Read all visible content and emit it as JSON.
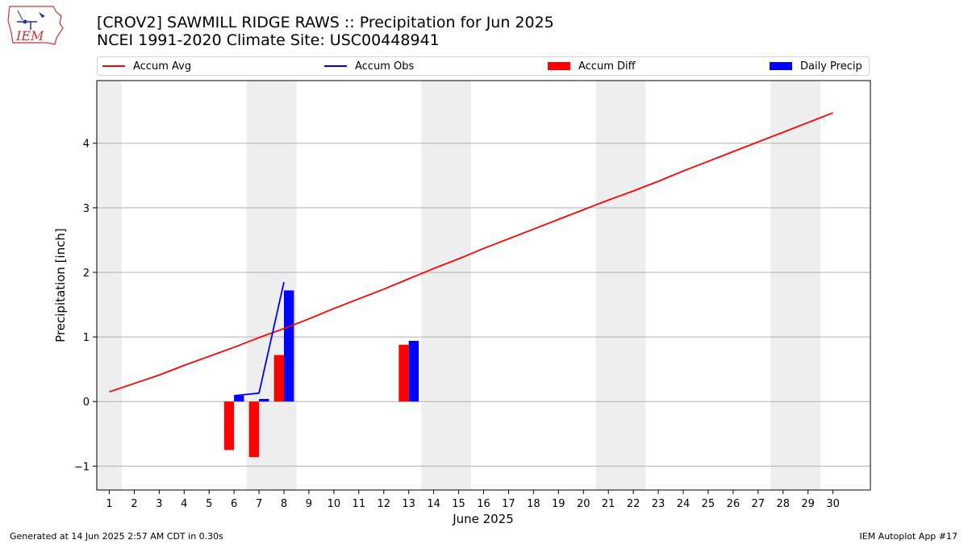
{
  "header": {
    "title_line1": "[CROV2] SAWMILL RIDGE RAWS :: Precipitation for Jun 2025",
    "title_line2": "NCEI 1991-2020 Climate Site: USC00448941"
  },
  "logo": {
    "text": "IEM"
  },
  "footer": {
    "generated": "Generated at 14 Jun 2025 2:57 AM CDT in 0.30s",
    "app": "IEM Autoplot App #17"
  },
  "colors": {
    "avg": "#ff0000",
    "obs": "#0000ff",
    "diff": "#ff0000",
    "daily": "#0000ff",
    "weekend": "#eeeeee",
    "grid": "#b0b0b0"
  },
  "chart_data": {
    "type": "bar",
    "title": "[CROV2] SAWMILL RIDGE RAWS :: Precipitation for Jun 2025",
    "subtitle": "NCEI 1991-2020 Climate Site: USC00448941",
    "xlabel": "June 2025",
    "ylabel": "Precipitation [inch]",
    "xlim": [
      0.5,
      31.5
    ],
    "ylim": [
      -1.37,
      4.97
    ],
    "yticks": [
      -1,
      0,
      1,
      2,
      3,
      4
    ],
    "ytick_labels": [
      "−1",
      "0",
      "1",
      "2",
      "3",
      "4"
    ],
    "x": [
      1,
      2,
      3,
      4,
      5,
      6,
      7,
      8,
      9,
      10,
      11,
      12,
      13,
      14,
      15,
      16,
      17,
      18,
      19,
      20,
      21,
      22,
      23,
      24,
      25,
      26,
      27,
      28,
      29,
      30
    ],
    "grid": "horizontal",
    "legend_position": "top",
    "weekend_shading": [
      [
        0.5,
        1.5
      ],
      [
        6.5,
        8.5
      ],
      [
        13.5,
        15.5
      ],
      [
        20.5,
        22.5
      ],
      [
        27.5,
        29.5
      ]
    ],
    "series": [
      {
        "name": "Accum Avg",
        "kind": "line",
        "x": [
          1,
          2,
          3,
          4,
          5,
          6,
          7,
          8,
          9,
          10,
          11,
          12,
          13,
          14,
          15,
          16,
          17,
          18,
          19,
          20,
          21,
          22,
          23,
          24,
          25,
          26,
          27,
          28,
          29,
          30
        ],
        "values": [
          0.15,
          0.28,
          0.41,
          0.56,
          0.7,
          0.84,
          0.99,
          1.13,
          1.28,
          1.44,
          1.59,
          1.74,
          1.9,
          2.06,
          2.21,
          2.37,
          2.52,
          2.67,
          2.82,
          2.97,
          3.12,
          3.26,
          3.41,
          3.57,
          3.72,
          3.87,
          4.02,
          4.17,
          4.32,
          4.47
        ]
      },
      {
        "name": "Accum Obs",
        "kind": "line",
        "x": [
          6,
          7,
          8
        ],
        "values": [
          0.09,
          0.13,
          1.85
        ]
      },
      {
        "name": "Accum Diff",
        "kind": "bar",
        "offset": -0.4,
        "x": [
          6,
          7,
          8,
          13
        ],
        "values": [
          -0.75,
          -0.86,
          0.72,
          0.88
        ]
      },
      {
        "name": "Daily Precip",
        "kind": "bar",
        "offset": 0.0,
        "x": [
          6,
          7,
          8,
          13
        ],
        "values": [
          0.09,
          0.04,
          1.72,
          0.94
        ]
      }
    ]
  }
}
